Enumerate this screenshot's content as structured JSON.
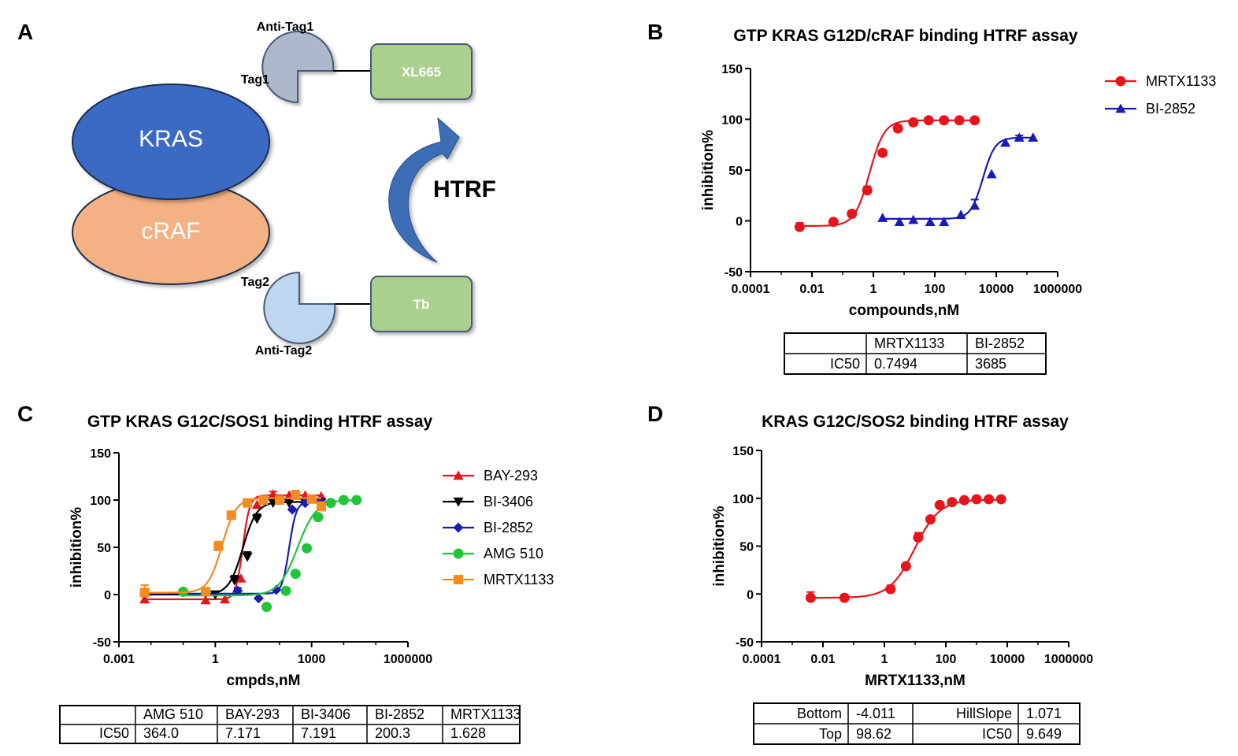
{
  "colors": {
    "red": "#e8141b",
    "blue": "#1a1ab4",
    "black": "#000000",
    "green": "#22c43a",
    "orange": "#f58a1f",
    "kras": "#3a6bc4",
    "craf": "#f4b183",
    "tag1": "#adb9ca",
    "tag2": "#bdd7ee",
    "box": "#a9d08e",
    "arrow": "#3d6db5"
  },
  "panel_a": {
    "letter": "A",
    "kras": "KRAS",
    "craf": "cRAF",
    "anti_tag1": "Anti-Tag1",
    "tag1": "Tag1",
    "xl665": "XL665",
    "htrf": "HTRF",
    "tag2": "Tag2",
    "anti_tag2": "Anti-Tag2",
    "tb": "Tb"
  },
  "chart_data": [
    {
      "panel": "B",
      "type": "scatter",
      "title": "GTP KRAS G12D/cRAF binding HTRF assay",
      "xlabel": "compounds,nM",
      "ylabel": "inhibition%",
      "xscale": "log",
      "xlim_log10": [
        -4,
        6
      ],
      "xticks": [
        "0.0001",
        "0.01",
        "1",
        "100",
        "10000",
        "1000000"
      ],
      "ylim": [
        -50,
        150
      ],
      "yticks": [
        "150",
        "100",
        "50",
        "0",
        "-50"
      ],
      "legend_position": "top-right",
      "series": [
        {
          "name": "MRTX1133",
          "color": "red",
          "marker": "circle",
          "x_log10": [
            -2.4,
            -1.3,
            -0.7,
            -0.2,
            0.3,
            0.8,
            1.3,
            1.8,
            2.3,
            2.8,
            3.3
          ],
          "y": [
            -6,
            -1,
            7,
            30,
            67,
            91,
            97,
            99,
            99,
            99,
            99
          ],
          "err": [
            4,
            0,
            2,
            4,
            2,
            1,
            0,
            0,
            0,
            0,
            0
          ],
          "fit": {
            "bottom": -5,
            "top": 99,
            "log_ic50": -0.1253,
            "hill": 1.8
          }
        },
        {
          "name": "BI-2852",
          "color": "blue",
          "marker": "triangle",
          "x_log10": [
            0.3,
            0.85,
            1.3,
            1.85,
            2.3,
            2.85,
            3.3,
            3.85,
            4.3,
            4.75,
            5.2
          ],
          "y": [
            3,
            -1,
            1,
            -1,
            -1,
            6,
            15,
            46,
            77,
            82,
            82
          ],
          "err": [
            0,
            0,
            0,
            0,
            0,
            0,
            6,
            0,
            0,
            2,
            0
          ],
          "fit": {
            "bottom": 2,
            "top": 82,
            "log_ic50": 3.5665,
            "hill": 2.2
          }
        }
      ],
      "table": {
        "headers": [
          "",
          "MRTX1133",
          "BI-2852"
        ],
        "rows": [
          [
            "IC50",
            "0.7494",
            "3685"
          ]
        ]
      }
    },
    {
      "panel": "C",
      "type": "scatter",
      "title": "GTP KRAS G12C/SOS1 binding HTRF assay",
      "xlabel": "cmpds,nM",
      "ylabel": "inhibition%",
      "xscale": "log",
      "xlim_log10": [
        -3,
        6
      ],
      "xticks": [
        "0.001",
        "1",
        "1000",
        "1000000"
      ],
      "ylim": [
        -50,
        150
      ],
      "yticks": [
        "150",
        "100",
        "50",
        "0",
        "-50"
      ],
      "legend_position": "right",
      "series": [
        {
          "name": "BAY-293",
          "color": "red",
          "marker": "triangle",
          "x_log10": [
            -2.2,
            -0.3,
            0.3,
            0.8,
            1.3,
            1.8,
            2.3,
            2.8,
            3.3
          ],
          "y": [
            -5,
            -6,
            -5,
            17,
            95,
            106,
            105,
            105,
            104
          ],
          "err": [
            6,
            5,
            0,
            0,
            0,
            3,
            0,
            0,
            0
          ],
          "fit": {
            "bottom": -5,
            "top": 105,
            "log_ic50": 0.8556,
            "hill": 4.0
          }
        },
        {
          "name": "BI-3406",
          "color": "black",
          "marker": "triangle-down",
          "x_log10": [
            -2.2,
            0.0,
            0.6,
            1.0,
            1.3,
            1.8,
            2.3,
            2.8,
            3.3
          ],
          "y": [
            1,
            0,
            15,
            40,
            80,
            97,
            97,
            97,
            98
          ],
          "err": [
            0,
            0,
            5,
            5,
            5,
            0,
            0,
            0,
            0
          ],
          "fit": {
            "bottom": 0,
            "top": 98,
            "log_ic50": 0.8568,
            "hill": 2.0
          }
        },
        {
          "name": "BI-2852",
          "color": "blue",
          "marker": "diamond",
          "x_log10": [
            -2.2,
            -0.3,
            0.7,
            1.35,
            1.9,
            2.4,
            2.8,
            3.3
          ],
          "y": [
            1,
            2,
            4,
            -4,
            5,
            90,
            97,
            98
          ],
          "err": [
            5,
            4,
            3,
            0,
            0,
            0,
            0,
            0
          ],
          "fit": {
            "bottom": 1,
            "top": 98,
            "log_ic50": 2.3017,
            "hill": 4.0
          }
        },
        {
          "name": "AMG 510",
          "color": "green",
          "marker": "circle",
          "x_log10": [
            -1.0,
            1.6,
            2.2,
            2.5,
            2.85,
            3.2,
            3.6,
            4.0,
            4.4
          ],
          "y": [
            3,
            -13,
            4,
            22,
            49,
            82,
            97,
            100,
            100
          ],
          "err": [
            0,
            0,
            0,
            0,
            0,
            0,
            0,
            0,
            0
          ],
          "fit": {
            "bottom": -1,
            "top": 100,
            "log_ic50": 2.5611,
            "hill": 1.5
          }
        },
        {
          "name": "MRTX1133",
          "color": "orange",
          "marker": "square",
          "x_log10": [
            -2.2,
            -0.3,
            0.1,
            0.5,
            1.0,
            1.5,
            2.0,
            2.5,
            3.0,
            3.3
          ],
          "y": [
            2,
            3,
            51,
            84,
            97,
            100,
            100,
            105,
            101,
            93
          ],
          "err": [
            8,
            0,
            5,
            4,
            0,
            0,
            0,
            5,
            0,
            5
          ],
          "fit": {
            "bottom": 2,
            "top": 102,
            "log_ic50": 0.2117,
            "hill": 2.0
          }
        }
      ],
      "table": {
        "headers": [
          "",
          "AMG 510",
          "BAY-293",
          "BI-3406",
          "BI-2852",
          "MRTX1133"
        ],
        "rows": [
          [
            "IC50",
            "364.0",
            "7.171",
            "7.191",
            "200.3",
            "1.628"
          ]
        ]
      }
    },
    {
      "panel": "D",
      "type": "scatter",
      "title": "KRAS G12C/SOS2 binding HTRF assay",
      "xlabel": "MRTX1133,nM",
      "ylabel": "inhibition%",
      "xscale": "log",
      "xlim_log10": [
        -4,
        6
      ],
      "xticks": [
        "0.0001",
        "0.01",
        "1",
        "100",
        "10000",
        "1000000"
      ],
      "ylim": [
        -50,
        150
      ],
      "yticks": [
        "150",
        "100",
        "50",
        "0",
        "-50"
      ],
      "series": [
        {
          "name": "MRTX1133",
          "color": "red",
          "marker": "circle",
          "x_log10": [
            -2.4,
            -1.3,
            0.2,
            0.7,
            1.1,
            1.5,
            1.8,
            2.2,
            2.6,
            3.0,
            3.4,
            3.8
          ],
          "y": [
            -4,
            -4,
            5,
            29,
            59,
            78,
            93,
            96,
            98,
            99,
            99,
            99
          ],
          "err": [
            6,
            0,
            4,
            0,
            5,
            0,
            0,
            0,
            0,
            0,
            0,
            0
          ],
          "fit": {
            "bottom": -4.011,
            "top": 98.62,
            "log_ic50": 0.9844,
            "hill": 1.071
          }
        }
      ],
      "table": {
        "rows": [
          [
            "Bottom",
            "-4.011",
            "HillSlope",
            "1.071"
          ],
          [
            "Top",
            "98.62",
            "IC50",
            "9.649"
          ]
        ]
      }
    }
  ]
}
